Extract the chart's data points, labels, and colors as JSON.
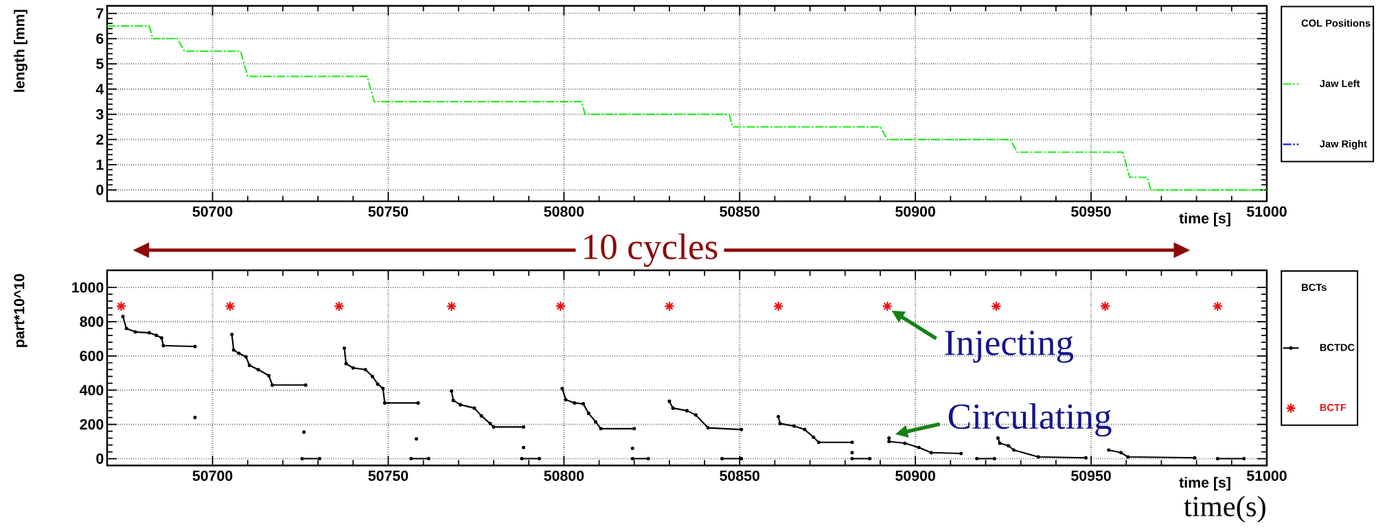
{
  "chart_data": [
    {
      "type": "line",
      "xlim": [
        50670,
        51000
      ],
      "ylim": [
        -0.45,
        7.3
      ],
      "xticks": [
        50700,
        50750,
        50800,
        50850,
        50900,
        50950,
        51000
      ],
      "yticks": [
        0,
        1,
        2,
        3,
        4,
        5,
        6,
        7
      ],
      "xlabel": "time [s]",
      "ylabel": "length [mm]",
      "grid": true,
      "legend": "right",
      "legend_title": "COL Positions",
      "series": [
        {
          "name": "Jaw Left",
          "color": "#22ee22",
          "line_style": "dashed",
          "x": [
            50670,
            50682,
            50683,
            50690,
            50692,
            50708,
            50710,
            50744,
            50746,
            50805,
            50806,
            50847,
            50848,
            50890,
            50892,
            50927,
            50929,
            50959,
            50961,
            50966,
            50967,
            51000
          ],
          "values": [
            6.5,
            6.5,
            6,
            6,
            5.5,
            5.5,
            4.5,
            4.5,
            3.5,
            3.5,
            3,
            3,
            2.5,
            2.5,
            2,
            2,
            1.5,
            1.5,
            0.5,
            0.5,
            0,
            0
          ]
        },
        {
          "name": "Jaw Right",
          "color": "#1a1aee",
          "line_style": "dashed"
        }
      ]
    },
    {
      "type": "line",
      "xlim": [
        50670,
        51000
      ],
      "ylim": [
        -40,
        1100
      ],
      "xticks": [
        50700,
        50750,
        50800,
        50850,
        50900,
        50950,
        51000
      ],
      "yticks": [
        0,
        200,
        400,
        600,
        800,
        1000
      ],
      "xlabel": "time [s]",
      "ylabel": "part*10^10",
      "grid": true,
      "legend": "right",
      "legend_title": "BCTs",
      "annotations": [
        "10 cycles",
        {
          "text": "Injecting",
          "x": 50892,
          "y": 890
        },
        {
          "text": "Circulating",
          "x": 50893,
          "y": 110
        },
        "time(s)"
      ],
      "series": [
        {
          "name": "BCTDC",
          "type": "line",
          "color": "#000000",
          "marker": "circle",
          "x": [
            50674.5,
            50675.5,
            50678,
            50682,
            50684,
            50685.5,
            50686,
            50695,
            null,
            50695,
            null,
            50705.5,
            50706,
            50707.5,
            50709.5,
            50710.5,
            50713,
            50716,
            50717,
            50726.5,
            null,
            50726,
            null,
            50725.5,
            50730.5,
            null,
            50737.5,
            50738,
            50740,
            50743.5,
            50745.5,
            50747,
            50748.5,
            50749,
            50758.5,
            null,
            50758,
            null,
            50756.5,
            50761.5,
            null,
            50768,
            50768.5,
            50770.5,
            50774.5,
            50776.5,
            50779,
            50780,
            50788.5,
            null,
            50788.5,
            null,
            50788,
            50793,
            null,
            50799.5,
            50800.5,
            50803,
            50805.5,
            50807,
            50809,
            50810.5,
            50820,
            null,
            50819.5,
            null,
            50819.5,
            50824,
            null,
            50830,
            50831,
            50835,
            50837.5,
            50841,
            50850.5,
            null,
            50845,
            50850.5,
            null,
            50861,
            50861.5,
            50865.5,
            50868.5,
            50871,
            50872.5,
            50882,
            null,
            50882,
            null,
            50882,
            50887,
            null,
            50892.5,
            50892.5,
            50897,
            50901,
            50904.5,
            50913,
            null,
            50917.5,
            50922.5,
            null,
            50923.5,
            50924,
            50926.5,
            50928,
            50935,
            50948.5,
            null,
            50955,
            50958.5,
            50960.5,
            50979.5,
            null,
            50986,
            50993.5
          ],
          "values": [
            830,
            760,
            740,
            735,
            720,
            705,
            660,
            655,
            null,
            240,
            null,
            725,
            635,
            615,
            595,
            545,
            520,
            485,
            430,
            430,
            null,
            155,
            null,
            0,
            0,
            null,
            645,
            555,
            530,
            520,
            480,
            435,
            410,
            325,
            325,
            null,
            115,
            null,
            0,
            0,
            null,
            395,
            340,
            315,
            295,
            250,
            205,
            185,
            185,
            null,
            65,
            null,
            0,
            0,
            null,
            410,
            345,
            325,
            320,
            265,
            215,
            175,
            175,
            null,
            60,
            null,
            0,
            0,
            null,
            335,
            295,
            280,
            255,
            180,
            170,
            null,
            0,
            0,
            null,
            245,
            205,
            190,
            170,
            125,
            95,
            95,
            null,
            35,
            null,
            0,
            0,
            null,
            120,
            100,
            90,
            65,
            35,
            30,
            null,
            0,
            0,
            null,
            120,
            90,
            75,
            50,
            10,
            5,
            null,
            50,
            35,
            10,
            5,
            null,
            0,
            0
          ]
        },
        {
          "name": "BCTF",
          "type": "scatter",
          "color": "#ee1111",
          "marker": "cross",
          "x": [
            50674,
            50705,
            50736,
            50768,
            50799,
            50830,
            50861,
            50892,
            50923,
            50954,
            50986
          ],
          "values": [
            890,
            890,
            890,
            890,
            890,
            890,
            890,
            890,
            890,
            890,
            890
          ]
        }
      ]
    }
  ]
}
